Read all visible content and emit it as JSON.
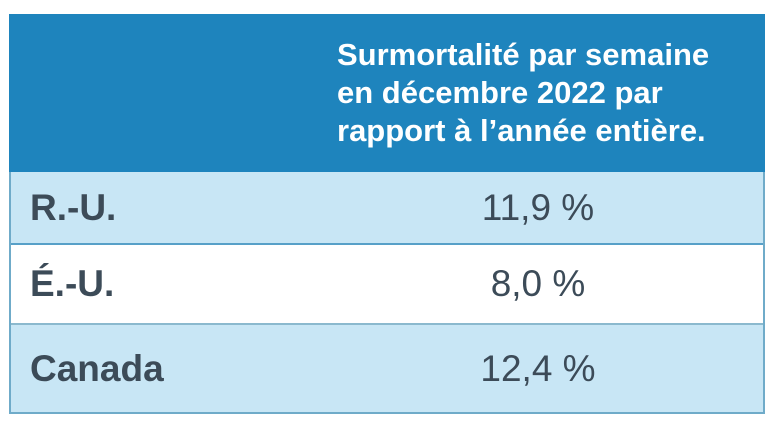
{
  "page": {
    "background_color": "#FFFFFF"
  },
  "table": {
    "header": {
      "text": "Surmortalité par semaine en décembre 2022 par rapport à l’année entière.",
      "lines": [
        "Surmortalité par semaine",
        "en décembre 2022 par",
        "rapport à l’année entière."
      ]
    },
    "rows": [
      {
        "label": "R.-U.",
        "value": "11,9 %"
      },
      {
        "label": "É.-U.",
        "value": "8,0 %"
      },
      {
        "label": "Canada",
        "value": "12,4 %"
      }
    ],
    "colors": {
      "header_background": "#1E84BD",
      "header_text": "#FFFFFF",
      "row_highlight_background": "#C8E6F5",
      "row_plain_background": "#FFFFFF",
      "outer_border": "#6FABC9",
      "separator_strong": "#57A0C8",
      "separator_soft": "#8BB9CE",
      "body_text": "#3C4B58"
    }
  },
  "chart_data": {
    "type": "table",
    "title": "Surmortalité par semaine en décembre 2022 par rapport à l’année entière.",
    "columns": [
      "",
      "Surmortalité par semaine en décembre 2022 par rapport à l’année entière."
    ],
    "rows": [
      [
        "R.-U.",
        "11,9 %"
      ],
      [
        "É.-U.",
        "8,0 %"
      ],
      [
        "Canada",
        "12,4 %"
      ]
    ],
    "categories": [
      "R.-U.",
      "É.-U.",
      "Canada"
    ],
    "values": [
      11.9,
      8.0,
      12.4
    ],
    "unit": "%",
    "layout_hints": {
      "header_position": "top, second column only",
      "row_striping": "alternating light blue / white",
      "value_alignment": "center",
      "label_alignment": "left"
    }
  }
}
